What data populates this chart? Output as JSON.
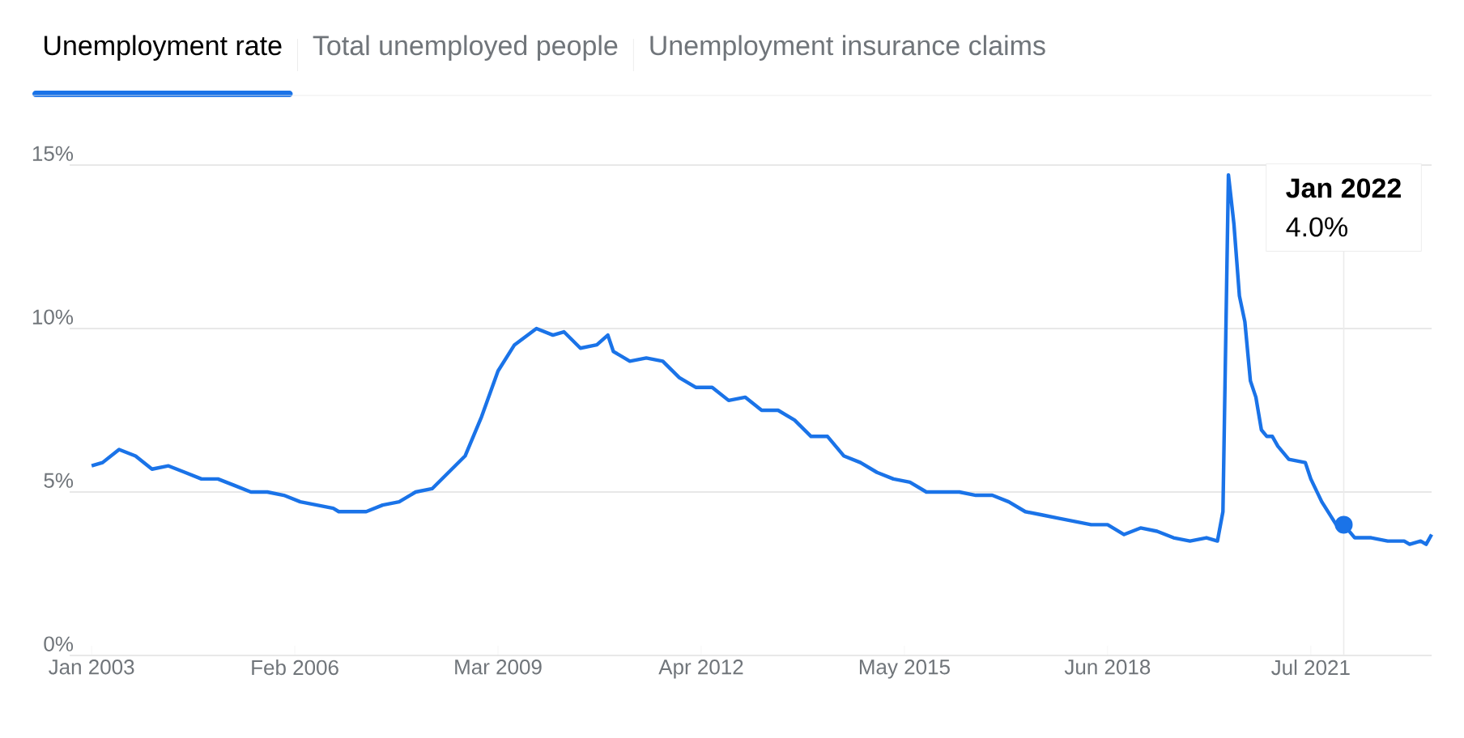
{
  "chart_data": {
    "type": "line",
    "title": "Unemployment rate",
    "annotations": [
      "Total unemployed people",
      "Unemployment insurance claims",
      "Jan 2022",
      "4.0%"
    ],
    "x": [
      "2003-01",
      "2003-03",
      "2003-06",
      "2003-09",
      "2003-12",
      "2004-03",
      "2004-06",
      "2004-09",
      "2004-12",
      "2005-03",
      "2005-06",
      "2005-09",
      "2005-12",
      "2006-03",
      "2006-06",
      "2006-09",
      "2006-10",
      "2006-12",
      "2007-03",
      "2007-06",
      "2007-09",
      "2007-12",
      "2008-03",
      "2008-06",
      "2008-09",
      "2008-12",
      "2009-03",
      "2009-06",
      "2009-10",
      "2010-01",
      "2010-03",
      "2010-06",
      "2010-09",
      "2010-11",
      "2010-12",
      "2011-03",
      "2011-06",
      "2011-09",
      "2011-12",
      "2012-03",
      "2012-06",
      "2012-09",
      "2012-12",
      "2013-03",
      "2013-06",
      "2013-09",
      "2013-12",
      "2014-03",
      "2014-06",
      "2014-09",
      "2014-12",
      "2015-03",
      "2015-06",
      "2015-09",
      "2015-12",
      "2016-03",
      "2016-06",
      "2016-09",
      "2016-12",
      "2017-03",
      "2017-06",
      "2017-09",
      "2017-12",
      "2018-03",
      "2018-06",
      "2018-09",
      "2018-12",
      "2019-03",
      "2019-06",
      "2019-09",
      "2019-12",
      "2020-02",
      "2020-03",
      "2020-04",
      "2020-05",
      "2020-06",
      "2020-07",
      "2020-08",
      "2020-09",
      "2020-10",
      "2020-11",
      "2020-12",
      "2021-01",
      "2021-03",
      "2021-06",
      "2021-07",
      "2021-09",
      "2021-12",
      "2022-01",
      "2022-03",
      "2022-06",
      "2022-09",
      "2022-12",
      "2023-01",
      "2023-03",
      "2023-04",
      "2023-05"
    ],
    "series": [
      {
        "color": "#1a73e8",
        "values": [
          5.8,
          5.9,
          6.3,
          6.1,
          5.7,
          5.8,
          5.6,
          5.4,
          5.4,
          5.2,
          5.0,
          5.0,
          4.9,
          4.7,
          4.6,
          4.5,
          4.4,
          4.4,
          4.4,
          4.6,
          4.7,
          5.0,
          5.1,
          5.6,
          6.1,
          7.3,
          8.7,
          9.5,
          10.0,
          9.8,
          9.9,
          9.4,
          9.5,
          9.8,
          9.3,
          9.0,
          9.1,
          9.0,
          8.5,
          8.2,
          8.2,
          7.8,
          7.9,
          7.5,
          7.5,
          7.2,
          6.7,
          6.7,
          6.1,
          5.9,
          5.6,
          5.4,
          5.3,
          5.0,
          5.0,
          5.0,
          4.9,
          4.9,
          4.7,
          4.4,
          4.3,
          4.2,
          4.1,
          4.0,
          4.0,
          3.7,
          3.9,
          3.8,
          3.6,
          3.5,
          3.6,
          3.5,
          4.4,
          14.7,
          13.2,
          11.0,
          10.2,
          8.4,
          7.9,
          6.9,
          6.7,
          6.7,
          6.4,
          6.0,
          5.9,
          5.4,
          4.7,
          3.9,
          4.0,
          3.6,
          3.6,
          3.5,
          3.5,
          3.4,
          3.5,
          3.4,
          3.7
        ]
      },
      {
        "type": "scatter",
        "color": "#1a73e8",
        "marker": "circle",
        "x": [
          "2022-01"
        ],
        "values": [
          4.0
        ]
      }
    ],
    "xlim": [
      "2002-09",
      "2023-05"
    ],
    "xticks": [
      {
        "value": "2003-01",
        "label": "Jan 2003"
      },
      {
        "value": "2006-02",
        "label": "Feb 2006"
      },
      {
        "value": "2009-03",
        "label": "Mar 2009"
      },
      {
        "value": "2012-04",
        "label": "Apr 2012"
      },
      {
        "value": "2015-05",
        "label": "May 2015"
      },
      {
        "value": "2018-06",
        "label": "Jun 2018"
      },
      {
        "value": "2021-07",
        "label": "Jul 2021"
      }
    ],
    "ylim": [
      0,
      15
    ],
    "yticks": [
      {
        "value": 0,
        "label": "0%"
      },
      {
        "value": 5,
        "label": "5%"
      },
      {
        "value": 10,
        "label": "10%"
      },
      {
        "value": 15,
        "label": "15%"
      }
    ],
    "ref_lines": [
      {
        "axis": "x",
        "value": "2022-01",
        "color": "#ebebeb"
      }
    ],
    "grid": "y",
    "marker": "none",
    "line_style": "solid"
  }
}
